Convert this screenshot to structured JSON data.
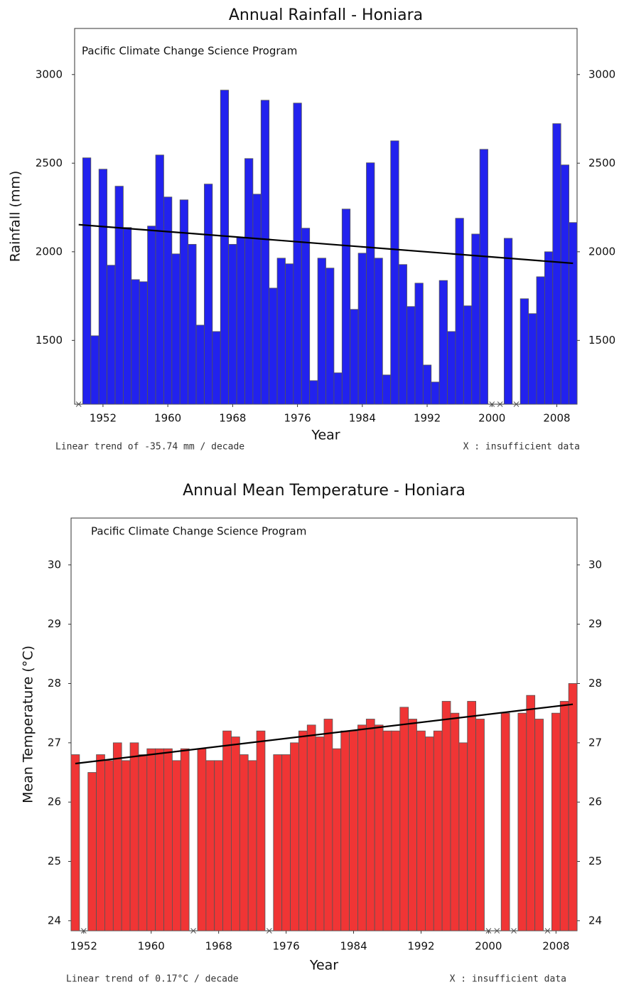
{
  "chart_data": [
    {
      "type": "bar",
      "title": "Annual Rainfall - Honiara",
      "subtitle": "Pacific Climate Change Science Program",
      "xlabel": "Year",
      "ylabel": "Rainfall (mm)",
      "color": "#2222ee",
      "x": [
        1949,
        1950,
        1951,
        1952,
        1953,
        1954,
        1955,
        1956,
        1957,
        1958,
        1959,
        1960,
        1961,
        1962,
        1963,
        1964,
        1965,
        1966,
        1967,
        1968,
        1969,
        1970,
        1971,
        1972,
        1973,
        1974,
        1975,
        1976,
        1977,
        1978,
        1979,
        1980,
        1981,
        1982,
        1983,
        1984,
        1985,
        1986,
        1987,
        1988,
        1989,
        1990,
        1991,
        1992,
        1993,
        1994,
        1995,
        1996,
        1997,
        1998,
        1999,
        2000,
        2001,
        2002,
        2003,
        2004,
        2005,
        2006,
        2007,
        2008,
        2009,
        2010
      ],
      "values": [
        null,
        2530,
        1526,
        2466,
        1924,
        2370,
        2137,
        1843,
        1831,
        2145,
        2546,
        2309,
        1988,
        2293,
        2042,
        1586,
        2382,
        1550,
        2912,
        2042,
        2080,
        2526,
        2325,
        2855,
        1795,
        1964,
        1932,
        2839,
        2133,
        1273,
        1964,
        1908,
        1317,
        2241,
        1675,
        1992,
        2502,
        1964,
        1305,
        2626,
        1928,
        1691,
        1823,
        1361,
        1265,
        1838,
        1550,
        2189,
        1695,
        2100,
        2578,
        null,
        null,
        2076,
        null,
        1735,
        1651,
        1859,
        2000,
        2723,
        2490,
        2165
      ],
      "trend": {
        "x": [
          1949,
          2010
        ],
        "values": [
          2153,
          1935
        ],
        "color": "#000000"
      },
      "xlim": [
        1948.5,
        2010.5
      ],
      "ylim": [
        1140,
        3260
      ],
      "xticks": [
        1952,
        1960,
        1968,
        1976,
        1984,
        1992,
        2000,
        2008
      ],
      "yticks": [
        1500,
        2000,
        2500,
        3000
      ],
      "trend_note": "Linear trend of -35.74 mm / decade",
      "missing_note": "X : insufficient data"
    },
    {
      "type": "bar",
      "title": "Annual Mean Temperature - Honiara",
      "subtitle": "Pacific Climate Change Science Program",
      "xlabel": "Year",
      "ylabel": "Mean Temperature (°C)",
      "color": "#f03535",
      "x": [
        1951,
        1952,
        1953,
        1954,
        1955,
        1956,
        1957,
        1958,
        1959,
        1960,
        1961,
        1962,
        1963,
        1964,
        1965,
        1966,
        1967,
        1968,
        1969,
        1970,
        1971,
        1972,
        1973,
        1974,
        1975,
        1976,
        1977,
        1978,
        1979,
        1980,
        1981,
        1982,
        1983,
        1984,
        1985,
        1986,
        1987,
        1988,
        1989,
        1990,
        1991,
        1992,
        1993,
        1994,
        1995,
        1996,
        1997,
        1998,
        1999,
        2000,
        2001,
        2002,
        2003,
        2004,
        2005,
        2006,
        2007,
        2008,
        2009,
        2010
      ],
      "values": [
        26.8,
        null,
        26.5,
        26.8,
        26.7,
        27.0,
        26.7,
        27.0,
        26.8,
        26.9,
        26.9,
        26.9,
        26.7,
        26.9,
        null,
        26.9,
        26.7,
        26.7,
        27.2,
        27.1,
        26.8,
        26.7,
        27.2,
        null,
        26.8,
        26.8,
        27.0,
        27.2,
        27.3,
        27.1,
        27.4,
        26.9,
        27.2,
        27.2,
        27.3,
        27.4,
        27.3,
        27.2,
        27.2,
        27.6,
        27.4,
        27.2,
        27.1,
        27.2,
        27.7,
        27.5,
        27.0,
        27.7,
        27.4,
        null,
        null,
        27.5,
        null,
        27.5,
        27.8,
        27.4,
        null,
        27.5,
        27.7,
        28.0
      ],
      "trend": {
        "x": [
          1951,
          2010
        ],
        "values": [
          26.65,
          27.65
        ],
        "color": "#000000"
      },
      "xlim": [
        1950.5,
        2010.5
      ],
      "ylim": [
        23.83,
        30.79
      ],
      "xticks": [
        1952,
        1960,
        1968,
        1976,
        1984,
        1992,
        2000,
        2008
      ],
      "yticks": [
        24,
        25,
        26,
        27,
        28,
        29,
        30
      ],
      "trend_note": "Linear trend of 0.17°C / decade",
      "missing_note": "X : insufficient data"
    }
  ]
}
